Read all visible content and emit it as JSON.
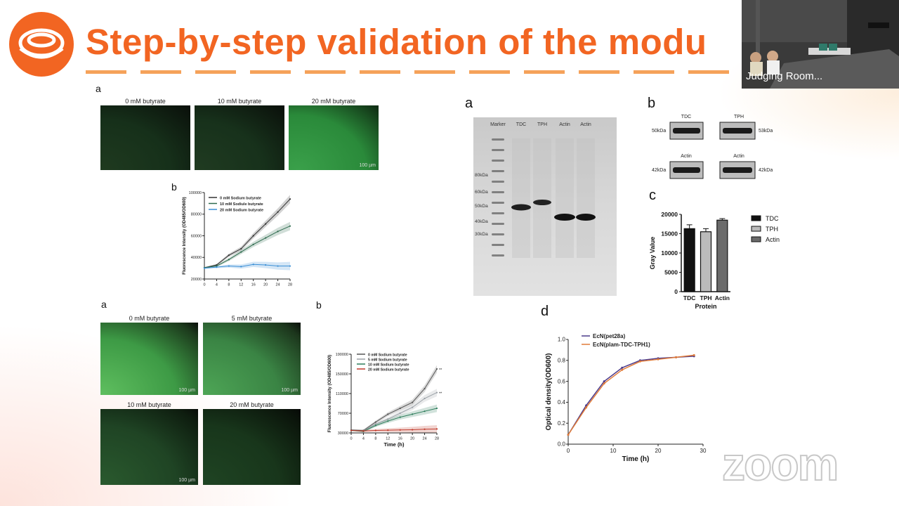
{
  "slide": {
    "title": "Step-by-step validation of the modu",
    "accent_color": "#f26522"
  },
  "video": {
    "participant_label": "Judging Room..."
  },
  "watermark": "zoom",
  "top_left": {
    "panel_a_label": "a",
    "panel_b_label": "b",
    "images": [
      {
        "caption": "0 mM butyrate",
        "scale": "",
        "brightness": "dark"
      },
      {
        "caption": "10 mM butyrate",
        "scale": "",
        "brightness": "dark"
      },
      {
        "caption": "20 mM butyrate",
        "scale": "100 µm",
        "brightness": "bright"
      }
    ]
  },
  "bottom_left": {
    "panel_a_label": "a",
    "panel_b_label": "b",
    "images": [
      {
        "caption": "0 mM butyrate",
        "scale": "100 µm"
      },
      {
        "caption": "5 mM butyrate",
        "scale": "100 µm"
      },
      {
        "caption": "10 mM butyrate",
        "scale": "100 µm"
      },
      {
        "caption": "20 mM butyrate",
        "scale": ""
      }
    ]
  },
  "western": {
    "panel_a_label": "a",
    "panel_b_label": "b",
    "panel_c_label": "c",
    "panel_d_label": "d",
    "lanes": [
      "Marker",
      "TDC",
      "TPH",
      "Actin",
      "Actin"
    ],
    "markers": [
      "80kDa",
      "60kDa",
      "50kDa",
      "40kDa",
      "30kDa"
    ],
    "blots": [
      {
        "name": "TDC",
        "left_kda": "50kDa",
        "right_name": "TPH",
        "right_kda": "53kDa"
      },
      {
        "name": "Actin",
        "left_kda": "42kDa",
        "right_name": "Actin",
        "right_kda": "42kDa"
      }
    ]
  },
  "chart_data": [
    {
      "type": "line",
      "title": "",
      "xlabel": "",
      "ylabel": "Fluorescence Intensity (OD485/OD600)",
      "x": [
        0,
        4,
        8,
        12,
        16,
        20,
        24,
        28
      ],
      "xticks": [
        "0",
        "4",
        "8",
        "12",
        "16",
        "20",
        "24",
        "28"
      ],
      "ylim": [
        20000,
        100000
      ],
      "yticks": [
        "20000",
        "40000",
        "60000",
        "80000",
        "100000"
      ],
      "series": [
        {
          "name": "0 mM  Sodium butyrate",
          "color": "#333333",
          "values": [
            30500,
            33000,
            42000,
            48000,
            60000,
            71000,
            82000,
            94000
          ]
        },
        {
          "name": "10 mM  Sodiule butyrate",
          "color": "#2e6b4e",
          "values": [
            30500,
            32000,
            38000,
            45000,
            52000,
            58000,
            64000,
            69000
          ]
        },
        {
          "name": "20 mM  Sodium butyrate",
          "color": "#3a8fd6",
          "values": [
            30000,
            31000,
            32000,
            31500,
            33500,
            33000,
            32000,
            32000
          ]
        }
      ]
    },
    {
      "type": "line",
      "title": "",
      "xlabel": "Time (h)",
      "ylabel": "Fluorescence Intensity (OD485/OD600)",
      "x": [
        0,
        4,
        8,
        12,
        16,
        20,
        24,
        28
      ],
      "xticks": [
        "0",
        "4",
        "8",
        "12",
        "16",
        "20",
        "24",
        "28"
      ],
      "ylim": [
        30000,
        190000
      ],
      "yticks": [
        "30000",
        "70000",
        "110000",
        "150000",
        "190000"
      ],
      "annotations": [
        "**",
        "**"
      ],
      "series": [
        {
          "name": "0 mM  Sodium butyrate",
          "color": "#555555",
          "values": [
            36000,
            35000,
            52000,
            68000,
            80000,
            92000,
            120000,
            160000
          ]
        },
        {
          "name": "5 mM  Sodium butyrate",
          "color": "#9aa0a6",
          "values": [
            35000,
            34000,
            48000,
            58000,
            70000,
            82000,
            100000,
            112000
          ]
        },
        {
          "name": "10 mM  Sodium butyrate",
          "color": "#2e7d5b",
          "values": [
            35000,
            33000,
            45000,
            54000,
            62000,
            68000,
            74000,
            80000
          ]
        },
        {
          "name": "20 mM  Sodium butyrate",
          "color": "#c0392b",
          "values": [
            35000,
            34000,
            35000,
            35500,
            36000,
            36500,
            37500,
            38000
          ]
        }
      ]
    },
    {
      "type": "bar",
      "title": "",
      "xlabel": "Protein",
      "ylabel": "Gray Value",
      "categories": [
        "TDC",
        "TPH",
        "Actin"
      ],
      "values": [
        16300,
        15500,
        18500
      ],
      "errors": [
        1000,
        800,
        400
      ],
      "ylim": [
        0,
        20000
      ],
      "yticks": [
        "0",
        "5000",
        "10000",
        "15000",
        "20000"
      ],
      "legend": [
        {
          "name": "TDC",
          "color": "#111111"
        },
        {
          "name": "TPH",
          "color": "#bbbbbb"
        },
        {
          "name": "Actin",
          "color": "#6b6b6b"
        }
      ]
    },
    {
      "type": "line",
      "title": "",
      "xlabel": "Time (h)",
      "ylabel": "Optical density(OD600)",
      "x": [
        0,
        4,
        8,
        12,
        16,
        20,
        24,
        28
      ],
      "xticks": [
        "0",
        "10",
        "20",
        "30"
      ],
      "xlim": [
        0,
        30
      ],
      "ylim": [
        0,
        1.0
      ],
      "yticks": [
        "0.0",
        "0.2",
        "0.4",
        "0.6",
        "0.8",
        "1.0"
      ],
      "series": [
        {
          "name": "EcN(pet28a)",
          "color": "#4b3a8a",
          "values": [
            0.09,
            0.37,
            0.6,
            0.73,
            0.8,
            0.82,
            0.83,
            0.84
          ]
        },
        {
          "name": "EcN(plam-TDC-TPH1)",
          "color": "#e07b39",
          "values": [
            0.09,
            0.35,
            0.58,
            0.71,
            0.79,
            0.81,
            0.83,
            0.85
          ]
        }
      ]
    }
  ]
}
